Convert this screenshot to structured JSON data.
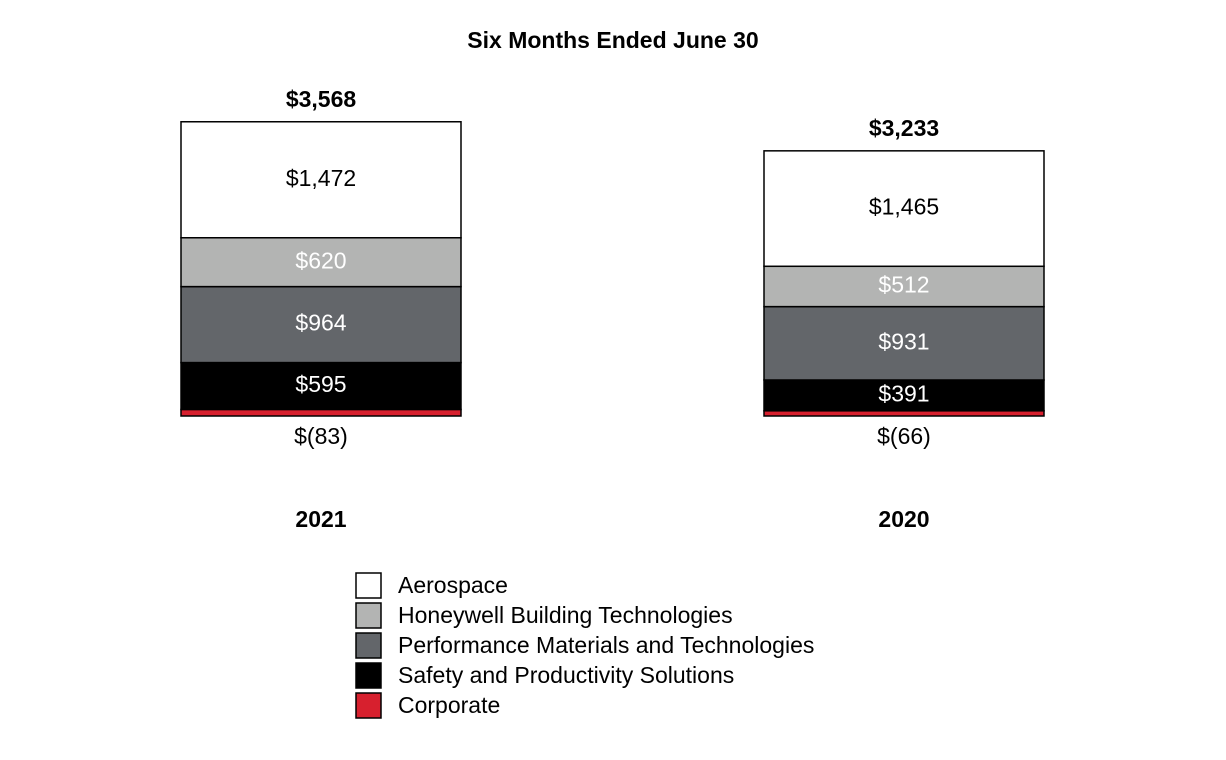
{
  "chart_data": {
    "type": "stacked_bar",
    "title": "Six Months Ended June 30",
    "categories": [
      "2021",
      "2020"
    ],
    "series": [
      {
        "name": "Corporate",
        "color": "#d7202e",
        "label_color": "#000000",
        "values": [
          -83,
          -66
        ],
        "value_labels": [
          "$(83)",
          "$(66)"
        ]
      },
      {
        "name": "Safety and Productivity Solutions",
        "color": "#000000",
        "label_color": "#ffffff",
        "values": [
          595,
          391
        ],
        "value_labels": [
          "$595",
          "$391"
        ]
      },
      {
        "name": "Performance Materials and Technologies",
        "color": "#63666a",
        "label_color": "#ffffff",
        "values": [
          964,
          931
        ],
        "value_labels": [
          "$964",
          "$931"
        ]
      },
      {
        "name": "Honeywell Building Technologies",
        "color": "#b3b4b3",
        "label_color": "#ffffff",
        "values": [
          620,
          512
        ],
        "value_labels": [
          "$620",
          "$512"
        ]
      },
      {
        "name": "Aerospace",
        "color": "#ffffff",
        "label_color": "#000000",
        "values": [
          1472,
          1465
        ],
        "value_labels": [
          "$1,472",
          "$1,465"
        ]
      }
    ],
    "totals": {
      "values": [
        3568,
        3233
      ],
      "value_labels": [
        "$3,568",
        "$3,233"
      ]
    }
  }
}
